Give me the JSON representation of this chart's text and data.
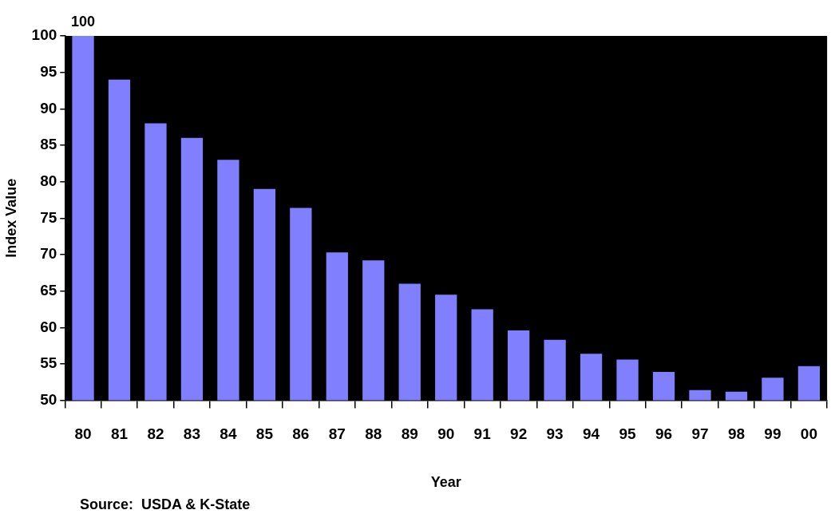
{
  "chart_data": {
    "type": "bar",
    "xlabel": "Year",
    "ylabel": "Index Value",
    "categories": [
      "80",
      "81",
      "82",
      "83",
      "84",
      "85",
      "86",
      "87",
      "88",
      "89",
      "90",
      "91",
      "92",
      "93",
      "94",
      "95",
      "96",
      "97",
      "98",
      "99",
      "00"
    ],
    "values": [
      100,
      94,
      88,
      86,
      83,
      79,
      76.4,
      70.3,
      69.2,
      66,
      64.5,
      62.5,
      59.6,
      58.3,
      56.4,
      55.6,
      53.9,
      51.4,
      51.2,
      53.1,
      54.7
    ],
    "value_labels": [
      "100",
      null,
      null,
      null,
      null,
      null,
      null,
      null,
      null,
      null,
      null,
      null,
      null,
      null,
      null,
      null,
      null,
      null,
      null,
      null,
      null
    ],
    "color": "#8080ff",
    "ylim": [
      50,
      100
    ],
    "yticks": [
      50,
      55,
      60,
      65,
      70,
      75,
      80,
      85,
      90,
      95,
      100
    ],
    "grid": false,
    "legend": false,
    "annotations": [
      "Source:  USDA & K-State"
    ]
  }
}
